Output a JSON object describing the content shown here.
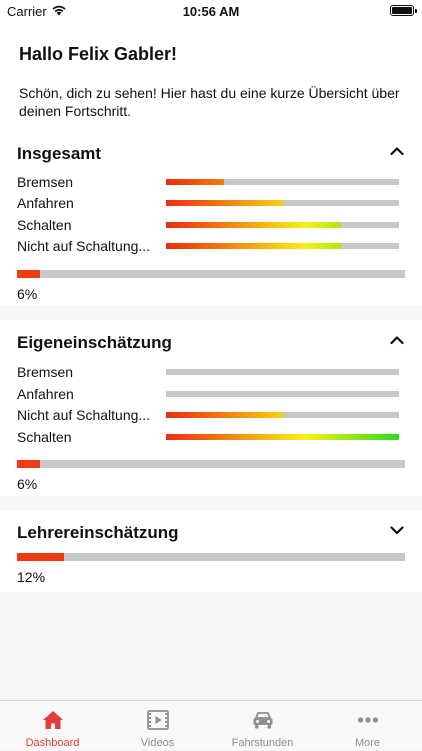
{
  "status_bar": {
    "carrier": "Carrier",
    "time": "10:56 AM"
  },
  "greeting": {
    "title": "Hallo Felix Gabler!",
    "subtitle": "Schön, dich zu sehen! Hier hast du eine kurze Übersicht über deinen Fortschritt."
  },
  "sections": {
    "insgesamt": {
      "title": "Insgesamt",
      "expanded": true,
      "rows": [
        {
          "label": "Bremsen",
          "progress": 0.25
        },
        {
          "label": "Anfahren",
          "progress": 0.5
        },
        {
          "label": "Schalten",
          "progress": 0.75
        },
        {
          "label": "Nicht auf Schaltung...",
          "progress": 0.75
        }
      ],
      "total_progress": 0.06,
      "percent": "6%"
    },
    "eigen": {
      "title": "Eigeneinschätzung",
      "expanded": true,
      "rows": [
        {
          "label": "Bremsen",
          "progress": 0.0
        },
        {
          "label": "Anfahren",
          "progress": 0.0
        },
        {
          "label": "Nicht auf Schaltung...",
          "progress": 0.5
        },
        {
          "label": "Schalten",
          "progress": 1.0
        }
      ],
      "total_progress": 0.06,
      "percent": "6%"
    },
    "lehrer": {
      "title": "Lehrereinschätzung",
      "expanded": false,
      "total_progress": 0.12,
      "percent": "12%"
    }
  },
  "tab_bar": {
    "active_color": "#e43b3b",
    "inactive_color": "#8e8e93",
    "tabs": [
      {
        "label": "Dashboard",
        "icon": "home-icon",
        "active": true
      },
      {
        "label": "Videos",
        "icon": "film-icon",
        "active": false
      },
      {
        "label": "Fahrstunden",
        "icon": "car-icon",
        "active": false
      },
      {
        "label": "More",
        "icon": "more-icon",
        "active": false
      }
    ]
  },
  "colors": {
    "bar_start": "#ef2a10",
    "bar_mid": "#f6f214",
    "bar_end": "#2ed81e",
    "track": "#c8c8c8"
  }
}
